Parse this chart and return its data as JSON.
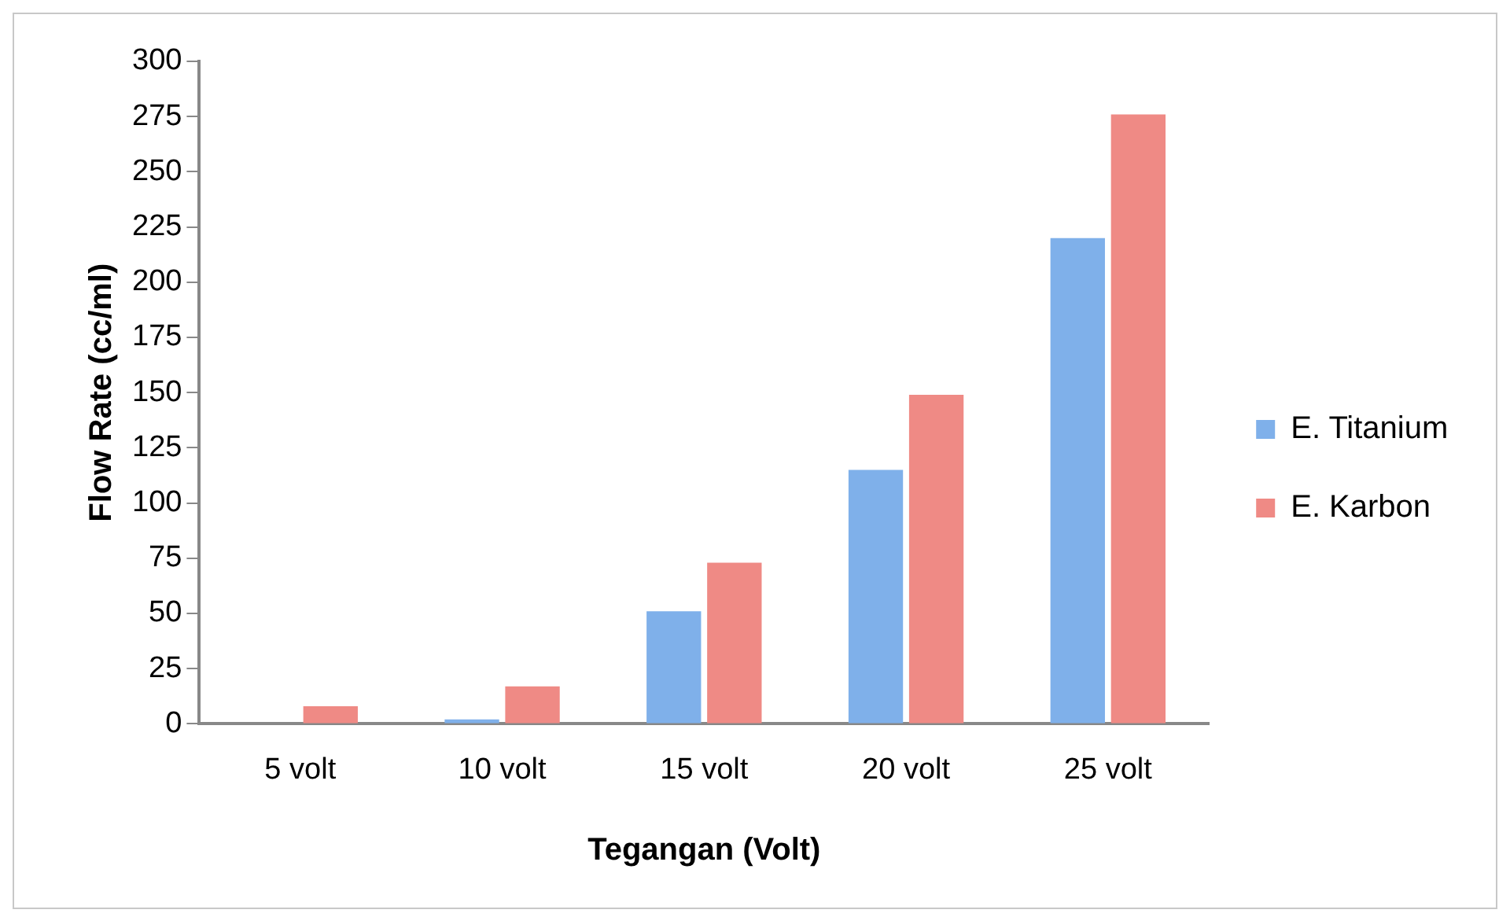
{
  "chart_data": {
    "type": "bar",
    "xlabel": "Tegangan (Volt)",
    "ylabel": "Flow Rate (cc/ml)",
    "categories": [
      "5 volt",
      "10 volt",
      "15 volt",
      "20 volt",
      "25 volt"
    ],
    "series": [
      {
        "name": "E. Titanium",
        "color": "#7fb0ea",
        "values": [
          0,
          2,
          51,
          115,
          220
        ]
      },
      {
        "name": "E. Karbon",
        "color": "#ef8a85",
        "values": [
          8,
          17,
          73,
          149,
          276
        ]
      }
    ],
    "ylim": [
      0,
      300
    ],
    "yticks": [
      0,
      25,
      50,
      75,
      100,
      125,
      150,
      175,
      200,
      225,
      250,
      275,
      300
    ],
    "grid": false,
    "legend": "right"
  }
}
